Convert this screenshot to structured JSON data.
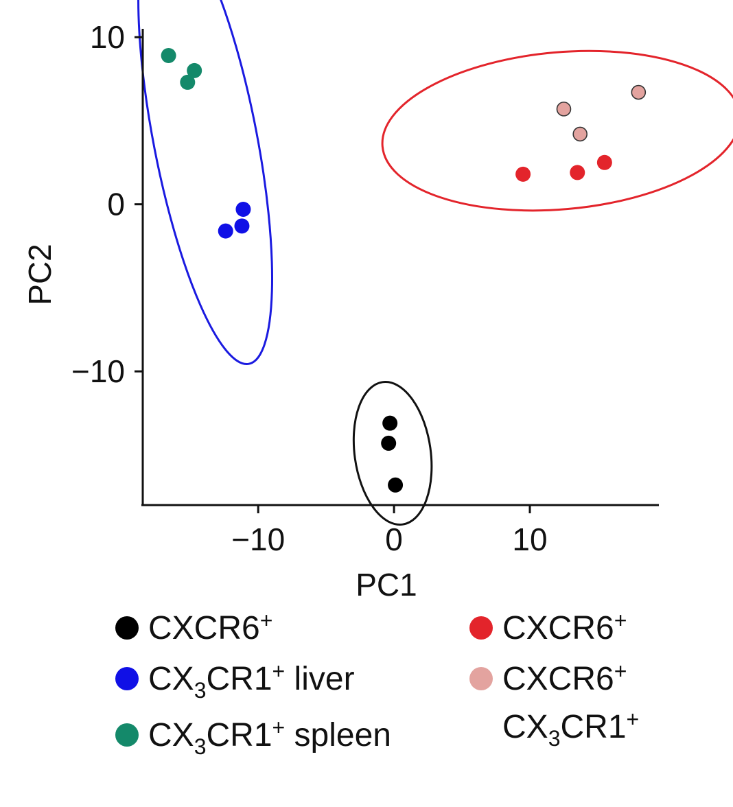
{
  "chart_data": {
    "type": "scatter",
    "title": "",
    "xlabel": "PC1",
    "ylabel": "PC2",
    "xlim": [
      -18.5,
      19.5
    ],
    "ylim": [
      -18,
      10.5
    ],
    "xticks": [
      -10,
      0,
      10
    ],
    "xtick_labels": [
      "−10",
      "0",
      "10"
    ],
    "yticks": [
      10,
      0,
      -10
    ],
    "ytick_labels": [
      "10",
      "0",
      "−10"
    ],
    "grid": false,
    "legend_position": "bottom",
    "series": [
      {
        "key": "cxcr6_black",
        "color": "#000000",
        "points": [
          [
            -0.3,
            -13.1
          ],
          [
            -0.4,
            -14.3
          ],
          [
            0.1,
            -16.8
          ]
        ]
      },
      {
        "key": "cx3cr1_liver",
        "color": "#1010e6",
        "points": [
          [
            -11.1,
            -0.3
          ],
          [
            -11.2,
            -1.3
          ],
          [
            -12.4,
            -1.6
          ]
        ]
      },
      {
        "key": "cx3cr1_spleen",
        "color": "#14896a",
        "points": [
          [
            -16.6,
            8.9
          ],
          [
            -14.7,
            8.0
          ],
          [
            -15.2,
            7.3
          ]
        ]
      },
      {
        "key": "cxcr6_red",
        "color": "#e3242b",
        "points": [
          [
            9.5,
            1.8
          ],
          [
            13.5,
            1.9
          ],
          [
            15.5,
            2.5
          ]
        ]
      },
      {
        "key": "cxcr6_cx3cr1",
        "color": "#e3a39f",
        "outlined": true,
        "points": [
          [
            12.5,
            5.7
          ],
          [
            13.7,
            4.2
          ],
          [
            18.0,
            6.7
          ]
        ]
      }
    ],
    "ellipses": [
      {
        "key": "blue-ellipse",
        "color": "#1a1ae0",
        "cx": -13.9,
        "cy": 3.9,
        "rx": 3.8,
        "ry": 13.7,
        "angle": -11
      },
      {
        "key": "red-ellipse",
        "color": "#e3242b",
        "cx": 12.3,
        "cy": 4.4,
        "rx": 13.2,
        "ry": 4.7,
        "angle": -5
      },
      {
        "key": "black-ellipse",
        "color": "#111111",
        "cx": -0.1,
        "cy": -14.9,
        "rx": 2.8,
        "ry": 4.3,
        "angle": -8
      }
    ],
    "legend": [
      {
        "key": "cxcr6_black",
        "color": "#000000",
        "label": "CXCR6",
        "label_sup": "+"
      },
      {
        "key": "cx3cr1_liver",
        "color": "#1010e6",
        "label_pre": "CX",
        "label_sub": "3",
        "label": "CR1",
        "label_sup": "+",
        "label_post": " liver"
      },
      {
        "key": "cx3cr1_spleen",
        "color": "#14896a",
        "label_pre": "CX",
        "label_sub": "3",
        "label": "CR1",
        "label_sup": "+",
        "label_post": " spleen"
      },
      {
        "key": "cxcr6_red",
        "color": "#e3242b",
        "label": "CXCR6",
        "label_sup": "+"
      },
      {
        "key": "cxcr6_cx3cr1",
        "color": "#e3a39f",
        "label": "CXCR6",
        "label_sup": "+",
        "line2_pre": "CX",
        "line2_sub": "3",
        "line2": "CR1",
        "line2_sup": "+"
      }
    ]
  }
}
